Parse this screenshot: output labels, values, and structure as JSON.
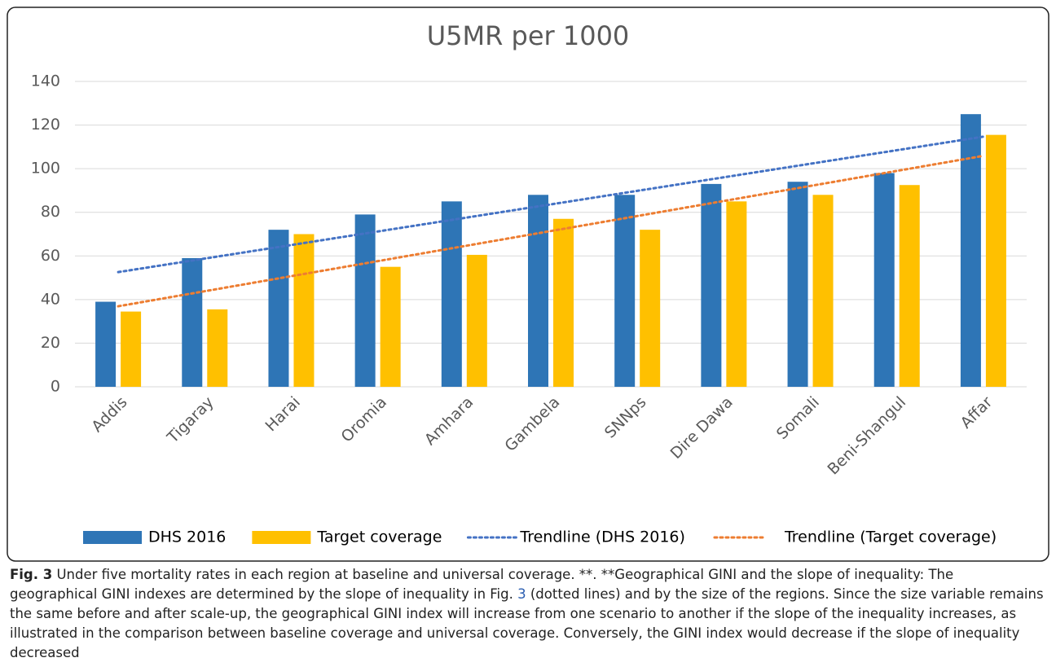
{
  "chart_data": {
    "type": "bar",
    "title": "U5MR per 1000",
    "categories": [
      "Addis",
      "Tigaray",
      "Harai",
      "Oromia",
      "Amhara",
      "Gambela",
      "SNNps",
      "Dire Dawa",
      "Somali",
      "Beni-Shangul",
      "Affar"
    ],
    "series": [
      {
        "name": "DHS 2016",
        "color": "#2e75b6",
        "values": [
          39,
          59,
          72,
          79,
          85,
          88,
          88,
          93,
          94,
          98,
          125
        ]
      },
      {
        "name": "Target coverage",
        "color": "#ffc000",
        "values": [
          34.5,
          35.5,
          70,
          55,
          60.5,
          77,
          72,
          85,
          88,
          92.5,
          115.5
        ]
      }
    ],
    "trendlines": [
      {
        "name": "Trendline (DHS 2016)",
        "series": 0,
        "color": "#4472c4"
      },
      {
        "name": "Trendline (Target coverage)",
        "series": 1,
        "color": "#ed7d31"
      }
    ],
    "ylim": [
      0,
      140
    ],
    "yticks": [
      0,
      20,
      40,
      60,
      80,
      100,
      120,
      140
    ],
    "grid": true,
    "legend": "bottom"
  },
  "caption": {
    "label": "Fig. 3",
    "text_before": "Under five mortality rates in each region at baseline and universal coverage. **. **Geographical GINI and the slope of inequality: The geographical GINI indexes are determined by the slope of inequality in Fig.",
    "ref": "3",
    "text_after": "(dotted lines) and by the size of the regions. Since the size variable remains the same before and after scale-up, the geographical GINI index will increase from one scenario to another if the slope of the inequality increases, as illustrated in the comparison between baseline coverage and universal coverage. Conversely, the GINI index would decrease if the slope of inequality decreased"
  }
}
